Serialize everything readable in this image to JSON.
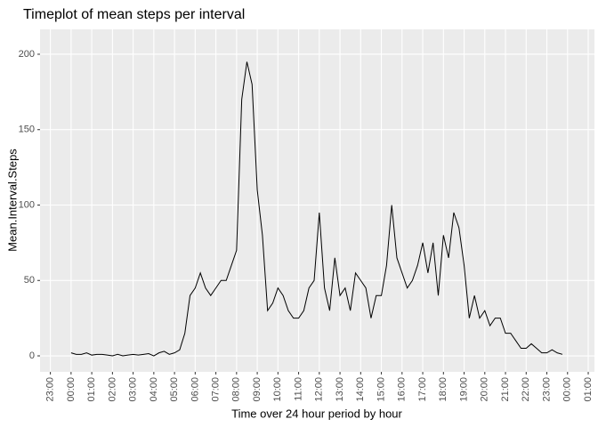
{
  "chart_data": {
    "type": "line",
    "title": "Timeplot of mean steps per interval",
    "x_label": "Time over 24 hour period by hour",
    "y_label": "Mean.Interval.Steps",
    "x": [
      0,
      0.25,
      0.5,
      0.75,
      1,
      1.25,
      1.5,
      1.75,
      2,
      2.25,
      2.5,
      2.75,
      3,
      3.25,
      3.5,
      3.75,
      4,
      4.25,
      4.5,
      4.75,
      5,
      5.25,
      5.5,
      5.75,
      6,
      6.25,
      6.5,
      6.75,
      7,
      7.25,
      7.5,
      7.75,
      8,
      8.25,
      8.5,
      8.75,
      9,
      9.25,
      9.5,
      9.75,
      10,
      10.25,
      10.5,
      10.75,
      11,
      11.25,
      11.5,
      11.75,
      12,
      12.25,
      12.5,
      12.75,
      13,
      13.25,
      13.5,
      13.75,
      14,
      14.25,
      14.5,
      14.75,
      15,
      15.25,
      15.5,
      15.75,
      16,
      16.25,
      16.5,
      16.75,
      17,
      17.25,
      17.5,
      17.75,
      18,
      18.25,
      18.5,
      18.75,
      19,
      19.25,
      19.5,
      19.75,
      20,
      20.25,
      20.5,
      20.75,
      21,
      21.25,
      21.5,
      21.75,
      22,
      22.25,
      22.5,
      22.75,
      23,
      23.25,
      23.5,
      23.75
    ],
    "series": [
      {
        "name": "Mean.Interval.Steps",
        "color": "#000000",
        "values": [
          2,
          1,
          1,
          2,
          0.5,
          1,
          1,
          0.5,
          0,
          1,
          0,
          0.5,
          1,
          0.5,
          1,
          1.5,
          0,
          2,
          3,
          1,
          2,
          4,
          15,
          40,
          45,
          55,
          45,
          40,
          45,
          50,
          50,
          60,
          70,
          170,
          195,
          180,
          110,
          80,
          30,
          35,
          45,
          40,
          30,
          25,
          25,
          30,
          45,
          50,
          95,
          45,
          30,
          65,
          40,
          45,
          30,
          55,
          50,
          45,
          25,
          40,
          40,
          60,
          100,
          65,
          55,
          45,
          50,
          60,
          75,
          55,
          75,
          40,
          80,
          65,
          95,
          85,
          60,
          25,
          40,
          25,
          30,
          20,
          25,
          25,
          15,
          15,
          10,
          5,
          5,
          8,
          5,
          2,
          2,
          4,
          2,
          1
        ]
      }
    ],
    "xlim": [
      -1.5,
      25.3
    ],
    "xticks": [
      {
        "value": -1,
        "label": "23:00"
      },
      {
        "value": 0,
        "label": "00:00"
      },
      {
        "value": 1,
        "label": "01:00"
      },
      {
        "value": 2,
        "label": "02:00"
      },
      {
        "value": 3,
        "label": "03:00"
      },
      {
        "value": 4,
        "label": "04:00"
      },
      {
        "value": 5,
        "label": "05:00"
      },
      {
        "value": 6,
        "label": "06:00"
      },
      {
        "value": 7,
        "label": "07:00"
      },
      {
        "value": 8,
        "label": "08:00"
      },
      {
        "value": 9,
        "label": "09:00"
      },
      {
        "value": 10,
        "label": "10:00"
      },
      {
        "value": 11,
        "label": "11:00"
      },
      {
        "value": 12,
        "label": "12:00"
      },
      {
        "value": 13,
        "label": "13:00"
      },
      {
        "value": 14,
        "label": "14:00"
      },
      {
        "value": 15,
        "label": "15:00"
      },
      {
        "value": 16,
        "label": "16:00"
      },
      {
        "value": 17,
        "label": "17:00"
      },
      {
        "value": 18,
        "label": "18:00"
      },
      {
        "value": 19,
        "label": "19:00"
      },
      {
        "value": 20,
        "label": "20:00"
      },
      {
        "value": 21,
        "label": "21:00"
      },
      {
        "value": 22,
        "label": "22:00"
      },
      {
        "value": 23,
        "label": "23:00"
      },
      {
        "value": 24,
        "label": "00:00"
      },
      {
        "value": 25,
        "label": "01:00"
      }
    ],
    "ylim": [
      -10.6,
      216.5
    ],
    "yticks": [
      0,
      50,
      100,
      150,
      200
    ],
    "grid": true
  }
}
